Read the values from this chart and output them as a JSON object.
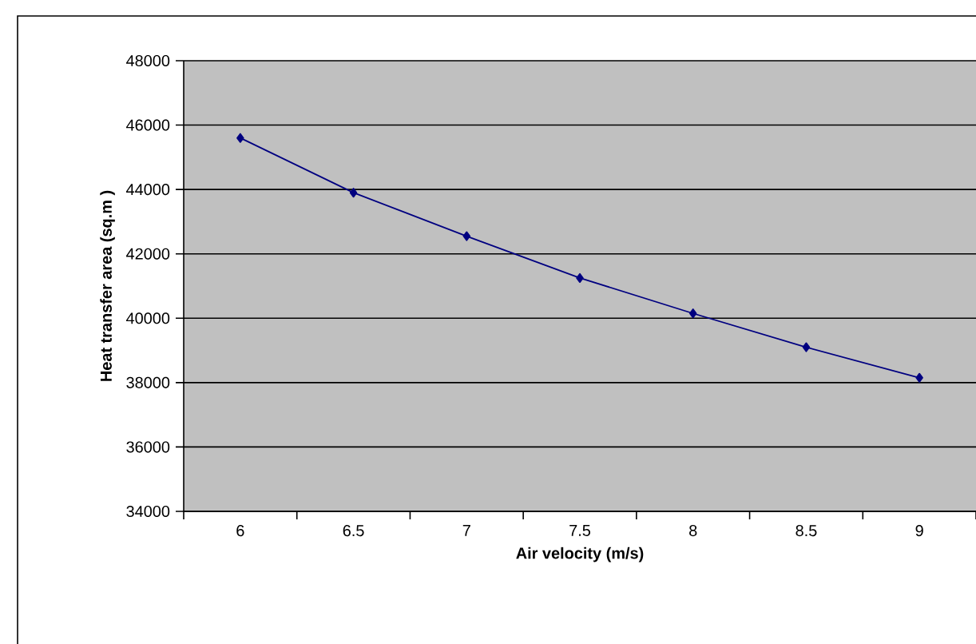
{
  "chart_data": {
    "type": "line",
    "xlabel": "Air velocity (m/s)",
    "ylabel": "Heat transfer area (sq.m )",
    "categories": [
      "6",
      "6.5",
      "7",
      "7.5",
      "8",
      "8.5",
      "9"
    ],
    "series": [
      {
        "color": "#000080",
        "values": [
          45600,
          43900,
          42550,
          41250,
          40150,
          39100,
          38150
        ]
      }
    ],
    "ylim": [
      34000,
      48000
    ],
    "yticks": [
      34000,
      36000,
      38000,
      40000,
      42000,
      44000,
      46000,
      48000
    ],
    "grid": "y",
    "marker": "diamond",
    "line_style": "solid"
  }
}
